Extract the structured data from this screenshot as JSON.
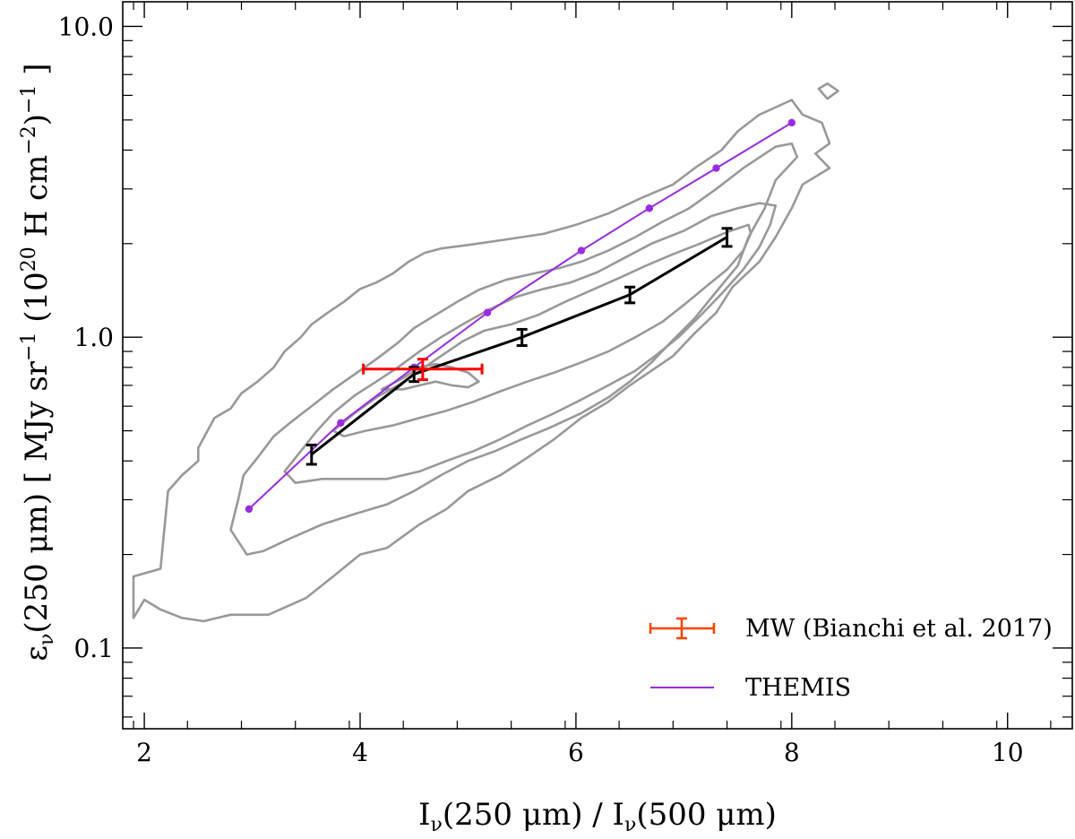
{
  "chart_data": {
    "type": "scatter",
    "title": "",
    "xlabel": "Iν(250 μm) / Iν(500 μm)",
    "ylabel": "εν(250 μm) [ MJy sr⁻¹ (10²⁰ H cm⁻²)⁻¹ ]",
    "xlim": [
      1.8,
      10.6
    ],
    "ylim": [
      0.055,
      12.0
    ],
    "yscale": "log",
    "grid": false,
    "legend_position": "bottom-right",
    "x_ticks": [
      2,
      4,
      6,
      8,
      10
    ],
    "x_tick_labels": [
      "2",
      "4",
      "6",
      "8",
      "10"
    ],
    "y_ticks": [
      0.1,
      1.0,
      10.0
    ],
    "y_tick_labels": [
      "0.1",
      "1.0",
      "10.0"
    ],
    "series": [
      {
        "name": "THEMIS",
        "kind": "line_markers",
        "color": "#9a2be2",
        "x": [
          2.97,
          3.82,
          4.5,
          5.18,
          6.05,
          6.68,
          7.3,
          8.0
        ],
        "y": [
          0.28,
          0.53,
          0.8,
          1.2,
          1.9,
          2.6,
          3.5,
          4.9
        ]
      },
      {
        "name": "",
        "kind": "line_errorbars",
        "color": "#000000",
        "x": [
          3.55,
          4.5,
          5.5,
          6.5,
          7.4
        ],
        "y": [
          0.42,
          0.76,
          1.0,
          1.37,
          2.1
        ],
        "yerr": [
          0.03,
          0.04,
          0.06,
          0.08,
          0.14
        ]
      },
      {
        "name": "MW (Bianchi et al. 2017)",
        "kind": "errorbar_point",
        "color": "#ff0000",
        "legend_color": "#ff4500",
        "x": [
          4.58
        ],
        "y": [
          0.79
        ],
        "xerr": [
          0.55
        ],
        "yerr": [
          0.06
        ]
      }
    ],
    "contours": {
      "color": "#999999",
      "levels": [
        [
          [
            1.9,
            0.17
          ],
          [
            2.15,
            0.18
          ],
          [
            2.22,
            0.32
          ],
          [
            2.35,
            0.36
          ],
          [
            2.5,
            0.4
          ],
          [
            2.5,
            0.44
          ],
          [
            2.65,
            0.55
          ],
          [
            2.8,
            0.59
          ],
          [
            2.9,
            0.66
          ],
          [
            3.05,
            0.72
          ],
          [
            3.2,
            0.8
          ],
          [
            3.3,
            0.9
          ],
          [
            3.45,
            1.0
          ],
          [
            3.55,
            1.1
          ],
          [
            3.7,
            1.2
          ],
          [
            3.85,
            1.3
          ],
          [
            4.0,
            1.43
          ],
          [
            4.15,
            1.5
          ],
          [
            4.3,
            1.6
          ],
          [
            4.45,
            1.75
          ],
          [
            4.6,
            1.87
          ],
          [
            4.75,
            1.93
          ],
          [
            5.0,
            1.98
          ],
          [
            5.3,
            2.05
          ],
          [
            5.7,
            2.15
          ],
          [
            6.0,
            2.3
          ],
          [
            6.3,
            2.5
          ],
          [
            6.6,
            2.8
          ],
          [
            6.9,
            3.1
          ],
          [
            7.1,
            3.5
          ],
          [
            7.35,
            4.0
          ],
          [
            7.5,
            4.6
          ],
          [
            7.7,
            5.2
          ],
          [
            8.0,
            5.8
          ],
          [
            8.1,
            5.2
          ],
          [
            8.28,
            4.9
          ],
          [
            8.35,
            4.2
          ],
          [
            8.22,
            3.9
          ],
          [
            8.35,
            3.5
          ],
          [
            8.1,
            3.1
          ],
          [
            8.0,
            2.6
          ],
          [
            7.85,
            2.1
          ],
          [
            7.7,
            1.75
          ],
          [
            7.45,
            1.45
          ],
          [
            7.3,
            1.2
          ],
          [
            7.1,
            1.03
          ],
          [
            6.9,
            0.87
          ],
          [
            6.7,
            0.78
          ],
          [
            6.5,
            0.7
          ],
          [
            6.3,
            0.62
          ],
          [
            6.05,
            0.55
          ],
          [
            5.8,
            0.47
          ],
          [
            5.55,
            0.41
          ],
          [
            5.3,
            0.36
          ],
          [
            5.0,
            0.32
          ],
          [
            4.8,
            0.28
          ],
          [
            4.55,
            0.25
          ],
          [
            4.25,
            0.21
          ],
          [
            4.0,
            0.2
          ],
          [
            3.75,
            0.17
          ],
          [
            3.5,
            0.145
          ],
          [
            3.15,
            0.128
          ],
          [
            2.8,
            0.128
          ],
          [
            2.55,
            0.122
          ],
          [
            2.35,
            0.125
          ],
          [
            2.15,
            0.133
          ],
          [
            2.0,
            0.143
          ],
          [
            1.9,
            0.125
          ]
        ],
        [
          [
            2.95,
            0.2
          ],
          [
            2.8,
            0.24
          ],
          [
            2.87,
            0.3
          ],
          [
            2.92,
            0.36
          ],
          [
            3.05,
            0.41
          ],
          [
            3.2,
            0.48
          ],
          [
            3.35,
            0.53
          ],
          [
            3.55,
            0.6
          ],
          [
            3.75,
            0.68
          ],
          [
            3.95,
            0.76
          ],
          [
            4.15,
            0.85
          ],
          [
            4.35,
            0.96
          ],
          [
            4.5,
            1.07
          ],
          [
            4.7,
            1.18
          ],
          [
            4.9,
            1.3
          ],
          [
            5.1,
            1.42
          ],
          [
            5.35,
            1.53
          ],
          [
            5.6,
            1.6
          ],
          [
            5.85,
            1.67
          ],
          [
            6.05,
            1.75
          ],
          [
            6.3,
            1.9
          ],
          [
            6.55,
            2.1
          ],
          [
            6.8,
            2.35
          ],
          [
            7.05,
            2.6
          ],
          [
            7.3,
            3.0
          ],
          [
            7.55,
            3.5
          ],
          [
            7.85,
            4.1
          ],
          [
            8.0,
            4.2
          ],
          [
            8.05,
            3.8
          ],
          [
            7.85,
            3.2
          ],
          [
            7.75,
            2.6
          ],
          [
            7.6,
            2.1
          ],
          [
            7.5,
            1.7
          ],
          [
            7.3,
            1.4
          ],
          [
            7.1,
            1.15
          ],
          [
            6.9,
            0.98
          ],
          [
            6.7,
            0.83
          ],
          [
            6.5,
            0.72
          ],
          [
            6.3,
            0.64
          ],
          [
            6.05,
            0.57
          ],
          [
            5.75,
            0.51
          ],
          [
            5.5,
            0.47
          ],
          [
            5.25,
            0.43
          ],
          [
            5.0,
            0.4
          ],
          [
            4.75,
            0.36
          ],
          [
            4.5,
            0.32
          ],
          [
            4.25,
            0.29
          ],
          [
            3.95,
            0.27
          ],
          [
            3.65,
            0.25
          ],
          [
            3.35,
            0.225
          ],
          [
            3.1,
            0.205
          ],
          [
            2.95,
            0.2
          ]
        ],
        [
          [
            3.3,
            0.37
          ],
          [
            3.45,
            0.43
          ],
          [
            3.6,
            0.5
          ],
          [
            3.75,
            0.57
          ],
          [
            3.95,
            0.65
          ],
          [
            4.15,
            0.72
          ],
          [
            4.35,
            0.8
          ],
          [
            4.55,
            0.9
          ],
          [
            4.75,
            1.0
          ],
          [
            4.95,
            1.1
          ],
          [
            5.2,
            1.23
          ],
          [
            5.45,
            1.35
          ],
          [
            5.7,
            1.43
          ],
          [
            5.95,
            1.5
          ],
          [
            6.2,
            1.62
          ],
          [
            6.45,
            1.8
          ],
          [
            6.7,
            2.0
          ],
          [
            7.0,
            2.2
          ],
          [
            7.25,
            2.45
          ],
          [
            7.5,
            2.6
          ],
          [
            7.7,
            2.7
          ],
          [
            7.85,
            2.65
          ],
          [
            7.8,
            2.3
          ],
          [
            7.7,
            1.95
          ],
          [
            7.55,
            1.65
          ],
          [
            7.35,
            1.38
          ],
          [
            7.15,
            1.17
          ],
          [
            6.95,
            1.0
          ],
          [
            6.75,
            0.88
          ],
          [
            6.55,
            0.78
          ],
          [
            6.3,
            0.7
          ],
          [
            6.05,
            0.63
          ],
          [
            5.8,
            0.57
          ],
          [
            5.55,
            0.52
          ],
          [
            5.3,
            0.47
          ],
          [
            5.05,
            0.43
          ],
          [
            4.8,
            0.4
          ],
          [
            4.55,
            0.37
          ],
          [
            4.25,
            0.35
          ],
          [
            3.95,
            0.35
          ],
          [
            3.65,
            0.35
          ],
          [
            3.4,
            0.34
          ],
          [
            3.3,
            0.37
          ]
        ],
        [
          [
            3.75,
            0.5
          ],
          [
            3.95,
            0.57
          ],
          [
            4.15,
            0.64
          ],
          [
            4.35,
            0.7
          ],
          [
            4.55,
            0.78
          ],
          [
            4.75,
            0.87
          ],
          [
            4.95,
            0.97
          ],
          [
            5.15,
            1.05
          ],
          [
            5.4,
            1.1
          ],
          [
            5.65,
            1.18
          ],
          [
            5.9,
            1.3
          ],
          [
            6.15,
            1.42
          ],
          [
            6.4,
            1.55
          ],
          [
            6.65,
            1.7
          ],
          [
            6.9,
            1.85
          ],
          [
            7.15,
            2.0
          ],
          [
            7.4,
            2.18
          ],
          [
            7.6,
            2.3
          ],
          [
            7.62,
            2.15
          ],
          [
            7.55,
            1.9
          ],
          [
            7.4,
            1.65
          ],
          [
            7.2,
            1.45
          ],
          [
            7.0,
            1.27
          ],
          [
            6.8,
            1.12
          ],
          [
            6.55,
            1.0
          ],
          [
            6.3,
            0.9
          ],
          [
            6.05,
            0.83
          ],
          [
            5.8,
            0.77
          ],
          [
            5.55,
            0.72
          ],
          [
            5.3,
            0.67
          ],
          [
            5.05,
            0.62
          ],
          [
            4.8,
            0.58
          ],
          [
            4.55,
            0.55
          ],
          [
            4.3,
            0.52
          ],
          [
            4.05,
            0.5
          ],
          [
            3.85,
            0.48
          ],
          [
            3.75,
            0.5
          ]
        ],
        [
          [
            4.2,
            0.68
          ],
          [
            4.4,
            0.74
          ],
          [
            4.55,
            0.8
          ],
          [
            4.7,
            0.82
          ],
          [
            4.85,
            0.8
          ],
          [
            5.0,
            0.77
          ],
          [
            5.1,
            0.72
          ],
          [
            5.0,
            0.69
          ],
          [
            4.85,
            0.7
          ],
          [
            4.7,
            0.72
          ],
          [
            4.55,
            0.7
          ],
          [
            4.4,
            0.68
          ],
          [
            4.2,
            0.68
          ]
        ],
        [
          [
            8.25,
            6.3
          ],
          [
            8.33,
            6.55
          ],
          [
            8.43,
            6.2
          ],
          [
            8.33,
            5.85
          ],
          [
            8.25,
            6.3
          ]
        ]
      ]
    }
  },
  "legend": {
    "items": [
      {
        "label": "MW (Bianchi et al. 2017)",
        "symbol": "errorbar",
        "color": "#ff4500"
      },
      {
        "label": "THEMIS",
        "symbol": "line",
        "color": "#9a2be2"
      }
    ]
  },
  "axes": {
    "xlabel_main": "I",
    "xlabel_sub1": "ν",
    "xlabel_mid": "(250 μm) / I",
    "xlabel_sub2": "ν",
    "xlabel_end": "(500 μm)",
    "ylabel_eps": "ε",
    "ylabel_sub": "ν",
    "ylabel_a": "(250 μm) [ MJy sr",
    "ylabel_sup1": "−1",
    "ylabel_b": " (10",
    "ylabel_sup2": "20",
    "ylabel_c": " H cm",
    "ylabel_sup3": "−2",
    "ylabel_d": ")",
    "ylabel_sup4": "−1",
    "ylabel_e": " ]"
  }
}
